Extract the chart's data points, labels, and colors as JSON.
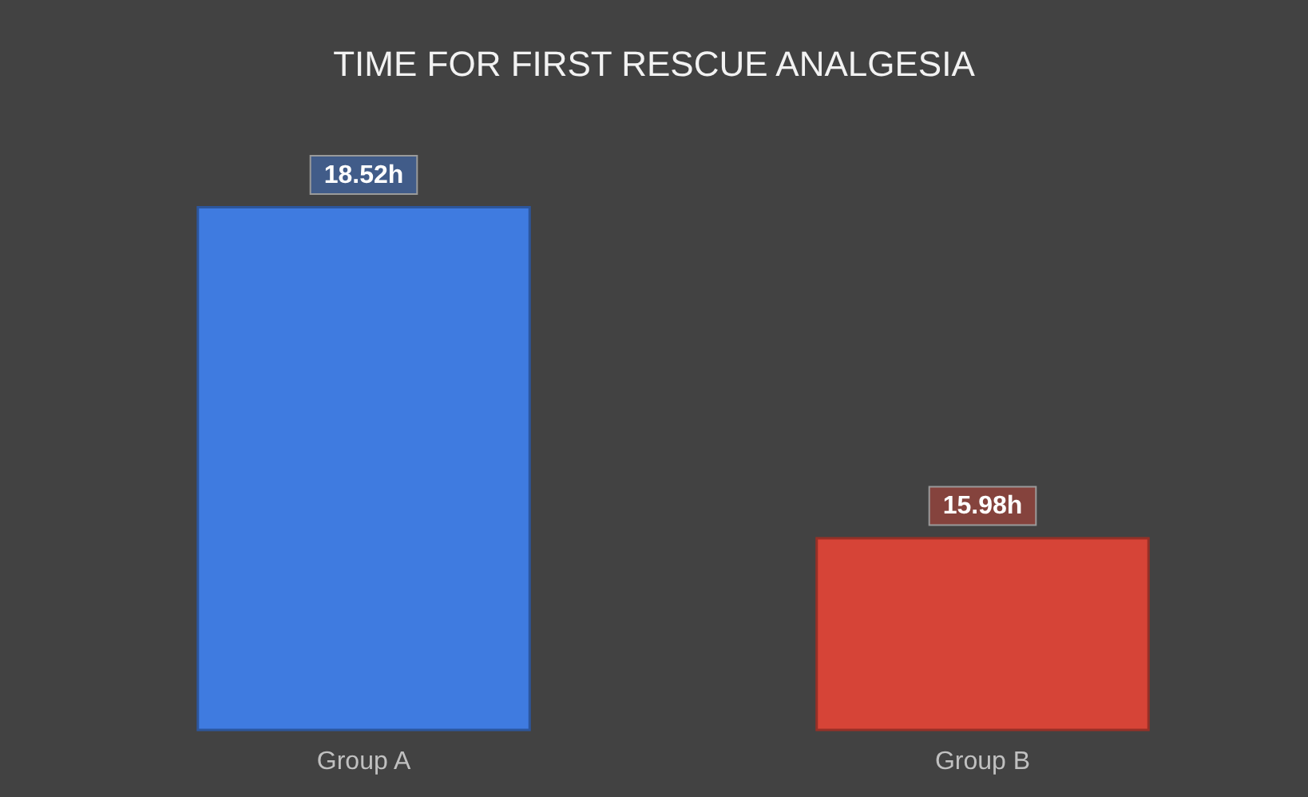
{
  "chart_data": {
    "type": "bar",
    "title": "TIME FOR FIRST RESCUE ANALGESIA",
    "categories": [
      "Group A",
      "Group B"
    ],
    "values": [
      18.52,
      15.98
    ],
    "colors": [
      "#3f7be0",
      "#d64437"
    ],
    "value_labels": [
      "18.52h",
      "15.98h"
    ],
    "ylim": [
      14.5,
      18.52
    ],
    "grid": false
  }
}
